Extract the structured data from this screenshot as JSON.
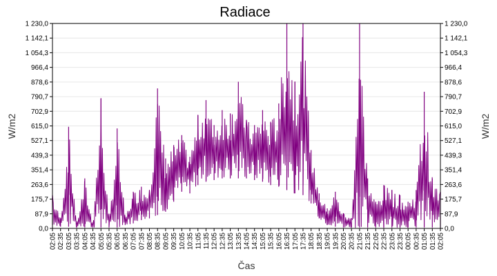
{
  "chart_data": {
    "type": "line",
    "title": "Radiace",
    "xlabel": "Čas",
    "ylabel": "W/m2",
    "ylabel_right": "W/m2",
    "ylim": [
      0,
      1230
    ],
    "y_ticks": [
      "0,0",
      "87,9",
      "175,7",
      "263,6",
      "351,4",
      "439,3",
      "527,1",
      "615,0",
      "702,9",
      "790,7",
      "878,6",
      "966,4",
      "1 054,3",
      "1 142,1",
      "1 230,0"
    ],
    "x_ticks": [
      "02:05",
      "02:35",
      "03:05",
      "03:35",
      "04:05",
      "04:35",
      "05:05",
      "05:35",
      "06:05",
      "06:35",
      "07:05",
      "07:35",
      "08:05",
      "08:35",
      "09:05",
      "09:35",
      "10:05",
      "10:35",
      "11:05",
      "11:35",
      "12:05",
      "12:35",
      "13:05",
      "13:35",
      "14:05",
      "14:35",
      "15:05",
      "15:35",
      "16:05",
      "16:35",
      "17:05",
      "17:35",
      "18:05",
      "18:35",
      "19:05",
      "19:35",
      "20:05",
      "20:35",
      "21:05",
      "21:35",
      "22:05",
      "22:35",
      "23:05",
      "23:35",
      "00:05",
      "00:35",
      "01:05",
      "01:35",
      "02:05"
    ],
    "series": [
      {
        "name": "",
        "color": "#800080",
        "x": [
          "02:05",
          "02:35",
          "03:05",
          "03:35",
          "04:05",
          "04:35",
          "05:05",
          "05:35",
          "06:05",
          "06:35",
          "07:05",
          "07:35",
          "08:05",
          "08:35",
          "09:05",
          "09:35",
          "10:05",
          "10:35",
          "11:05",
          "11:35",
          "12:05",
          "12:35",
          "13:05",
          "13:35",
          "14:05",
          "14:35",
          "15:05",
          "15:35",
          "16:05",
          "16:35",
          "17:05",
          "17:35",
          "18:05",
          "18:35",
          "19:05",
          "19:35",
          "20:05",
          "20:35",
          "21:05",
          "21:35",
          "22:05",
          "22:35",
          "23:05",
          "23:35",
          "00:05",
          "00:35",
          "01:05",
          "01:35",
          "02:05"
        ],
        "values": [
          200,
          60,
          610,
          30,
          300,
          20,
          780,
          30,
          600,
          60,
          220,
          250,
          230,
          840,
          420,
          500,
          560,
          430,
          680,
          770,
          620,
          710,
          690,
          880,
          650,
          620,
          710,
          640,
          750,
          1230,
          880,
          1230,
          470,
          210,
          120,
          220,
          90,
          60,
          1230,
          300,
          160,
          260,
          230,
          200,
          160,
          230,
          820,
          300,
          220
        ],
        "lows": [
          20,
          10,
          10,
          5,
          5,
          5,
          5,
          5,
          5,
          20,
          30,
          50,
          60,
          80,
          100,
          160,
          220,
          210,
          260,
          280,
          290,
          300,
          300,
          300,
          300,
          290,
          280,
          260,
          250,
          230,
          210,
          200,
          150,
          60,
          20,
          10,
          5,
          5,
          5,
          5,
          5,
          5,
          5,
          5,
          5,
          5,
          5,
          5,
          5
        ]
      }
    ]
  }
}
